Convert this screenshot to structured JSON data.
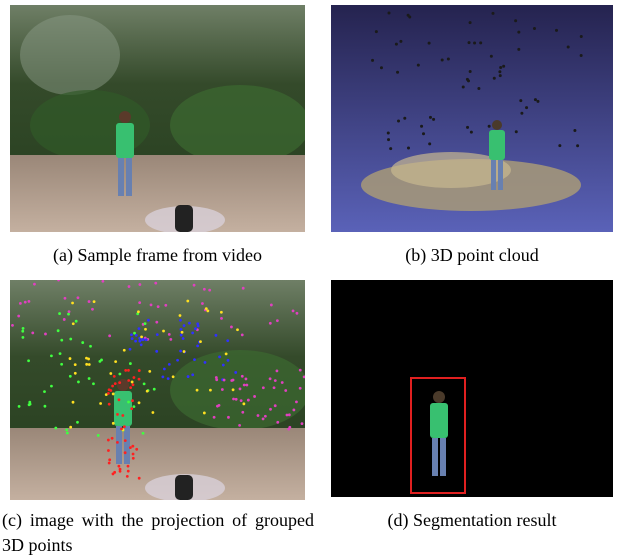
{
  "figure": {
    "panels": [
      {
        "caption": "(a) Sample frame from video"
      },
      {
        "caption": "(b) 3D point cloud"
      },
      {
        "caption": "(c) image with the projection of grouped 3D points"
      },
      {
        "caption": "(d) Segmentation result"
      }
    ]
  }
}
